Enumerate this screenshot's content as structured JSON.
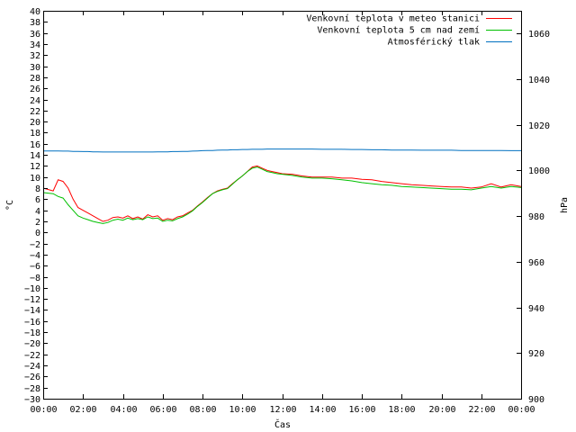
{
  "chart_data": {
    "type": "line",
    "xlabel": "Čas",
    "ylabel": "°C",
    "y2label": "hPa",
    "x_ticks": [
      "00:00",
      "02:00",
      "04:00",
      "06:00",
      "08:00",
      "10:00",
      "12:00",
      "14:00",
      "16:00",
      "18:00",
      "20:00",
      "22:00",
      "00:00"
    ],
    "ylim": [
      -30,
      40
    ],
    "y_step": 2,
    "y2lim": [
      900,
      1070
    ],
    "y2_ticks": [
      900,
      920,
      940,
      960,
      980,
      1000,
      1020,
      1040,
      1060
    ],
    "legend_position": "top-right",
    "x_hours": [
      0,
      0.5,
      0.75,
      1,
      1.25,
      1.5,
      1.75,
      2,
      2.25,
      2.5,
      2.75,
      3,
      3.25,
      3.5,
      3.75,
      4,
      4.25,
      4.5,
      4.75,
      5,
      5.25,
      5.5,
      5.75,
      6,
      6.25,
      6.5,
      6.75,
      7,
      7.25,
      7.5,
      7.75,
      8,
      8.25,
      8.5,
      8.75,
      9,
      9.25,
      9.5,
      9.75,
      10,
      10.25,
      10.5,
      10.75,
      11,
      11.25,
      11.5,
      11.75,
      12,
      12.5,
      13,
      13.5,
      14,
      14.5,
      15,
      15.5,
      16,
      16.5,
      17,
      17.5,
      18,
      18.5,
      19,
      19.5,
      20,
      20.5,
      21,
      21.5,
      22,
      22.5,
      23,
      23.5,
      24
    ],
    "series": [
      {
        "name": "Venkovní teplota v meteo stanici",
        "color": "#ff0000",
        "axis": "left",
        "values": [
          8.0,
          7.5,
          9.5,
          9.2,
          8.0,
          6.0,
          4.5,
          4.0,
          3.5,
          3.0,
          2.5,
          2.0,
          2.2,
          2.7,
          2.8,
          2.6,
          3.0,
          2.5,
          2.8,
          2.4,
          3.2,
          2.8,
          3.0,
          2.2,
          2.5,
          2.3,
          2.8,
          3.0,
          3.5,
          4.0,
          4.8,
          5.5,
          6.3,
          7.0,
          7.5,
          7.8,
          8.0,
          8.8,
          9.5,
          10.2,
          11.0,
          11.8,
          12.0,
          11.6,
          11.2,
          11.0,
          10.8,
          10.6,
          10.5,
          10.2,
          10.0,
          10.0,
          10.0,
          9.8,
          9.8,
          9.6,
          9.5,
          9.2,
          9.0,
          8.8,
          8.6,
          8.5,
          8.4,
          8.3,
          8.2,
          8.2,
          8.0,
          8.2,
          8.8,
          8.2,
          8.6,
          8.3
        ]
      },
      {
        "name": "Venkovní teplota 5 cm nad zemí",
        "color": "#00c000",
        "axis": "left",
        "values": [
          7.2,
          7.0,
          6.5,
          6.2,
          5.0,
          4.0,
          3.0,
          2.6,
          2.3,
          2.0,
          1.8,
          1.6,
          1.8,
          2.2,
          2.4,
          2.2,
          2.6,
          2.3,
          2.5,
          2.3,
          2.8,
          2.5,
          2.6,
          2.0,
          2.2,
          2.1,
          2.5,
          2.8,
          3.3,
          3.9,
          4.7,
          5.4,
          6.2,
          7.0,
          7.4,
          7.7,
          7.9,
          8.7,
          9.5,
          10.2,
          11.0,
          11.6,
          11.8,
          11.4,
          11.0,
          10.8,
          10.6,
          10.5,
          10.3,
          10.0,
          9.8,
          9.8,
          9.7,
          9.5,
          9.3,
          9.0,
          8.8,
          8.6,
          8.5,
          8.3,
          8.2,
          8.1,
          8.0,
          7.9,
          7.8,
          7.8,
          7.7,
          8.0,
          8.3,
          8.0,
          8.3,
          8.1
        ]
      },
      {
        "name": "Atmosférický tlak",
        "color": "#0070c0",
        "axis": "right",
        "values": [
          1008.6,
          1008.6,
          1008.6,
          1008.5,
          1008.5,
          1008.4,
          1008.4,
          1008.3,
          1008.3,
          1008.2,
          1008.2,
          1008.1,
          1008.1,
          1008.1,
          1008.1,
          1008.1,
          1008.1,
          1008.1,
          1008.1,
          1008.1,
          1008.1,
          1008.1,
          1008.2,
          1008.2,
          1008.2,
          1008.3,
          1008.3,
          1008.4,
          1008.4,
          1008.5,
          1008.6,
          1008.7,
          1008.8,
          1008.8,
          1008.9,
          1009.0,
          1009.0,
          1009.1,
          1009.1,
          1009.2,
          1009.2,
          1009.3,
          1009.3,
          1009.3,
          1009.4,
          1009.4,
          1009.4,
          1009.4,
          1009.4,
          1009.4,
          1009.4,
          1009.3,
          1009.3,
          1009.3,
          1009.2,
          1009.2,
          1009.1,
          1009.1,
          1009.0,
          1009.0,
          1009.0,
          1008.9,
          1008.9,
          1008.9,
          1008.9,
          1008.8,
          1008.8,
          1008.8,
          1008.8,
          1008.8,
          1008.7,
          1008.7
        ]
      }
    ]
  }
}
